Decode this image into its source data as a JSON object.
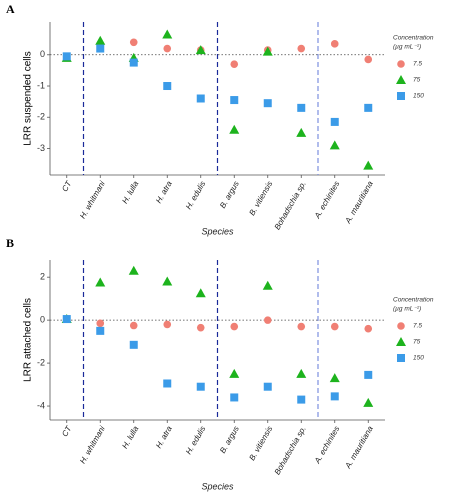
{
  "chart_data": [
    {
      "type": "scatter",
      "panel_label": "A",
      "ylabel": "LRR suspended cells",
      "xlabel": "Species",
      "categories": [
        "CT",
        "H. whitmani",
        "H. lulla",
        "H. atra",
        "H. edulis",
        "B. argus",
        "B. vitiensis",
        "Bohadschia sp.",
        "A. echinites",
        "A. mauritiana"
      ],
      "legend_title": [
        "Concentration",
        "(µg mL⁻¹)"
      ],
      "series": [
        {
          "name": "7.5",
          "color": "#f07f74",
          "marker": "circle",
          "values": [
            -0.05,
            0.3,
            0.4,
            0.2,
            0.15,
            -0.3,
            0.15,
            0.2,
            0.35,
            -0.15
          ]
        },
        {
          "name": "75",
          "color": "#1db31d",
          "marker": "triangle",
          "values": [
            -0.1,
            0.45,
            -0.1,
            0.65,
            0.15,
            -2.4,
            0.1,
            -2.5,
            -2.9,
            -3.55
          ]
        },
        {
          "name": "150",
          "color": "#3b9be8",
          "marker": "square",
          "values": [
            -0.05,
            0.2,
            -0.25,
            -1.0,
            -1.4,
            -1.45,
            -1.55,
            -1.7,
            -2.15,
            -1.7
          ]
        }
      ],
      "ylim": [
        -3.85,
        1.05
      ],
      "yticks": [
        -3,
        -2,
        -1,
        0
      ]
    },
    {
      "type": "scatter",
      "panel_label": "B",
      "ylabel": "LRR attached cells",
      "xlabel": "Species",
      "categories": [
        "CT",
        "H. whitmani",
        "H. lulla",
        "H. atra",
        "H. edulis",
        "B. argus",
        "B. vitiensis",
        "Bohadschia sp.",
        "A. echinites",
        "A. mauritiana"
      ],
      "legend_title": [
        "Concentration",
        "(µg mL⁻¹)"
      ],
      "series": [
        {
          "name": "7.5",
          "color": "#f07f74",
          "marker": "circle",
          "values": [
            0.05,
            -0.15,
            -0.25,
            -0.2,
            -0.35,
            -0.3,
            0,
            -0.3,
            -0.3,
            -0.4
          ]
        },
        {
          "name": "75",
          "color": "#1db31d",
          "marker": "triangle",
          "values": [
            0.05,
            1.75,
            2.3,
            1.8,
            1.25,
            -2.5,
            1.6,
            -2.5,
            -2.7,
            -3.85
          ]
        },
        {
          "name": "150",
          "color": "#3b9be8",
          "marker": "square",
          "values": [
            0.05,
            -0.5,
            -1.15,
            -2.95,
            -3.1,
            -3.6,
            -3.1,
            -3.7,
            -3.55,
            -2.55
          ]
        }
      ],
      "ylim": [
        -4.65,
        2.8
      ],
      "yticks": [
        -4,
        -2,
        0,
        2
      ]
    }
  ]
}
